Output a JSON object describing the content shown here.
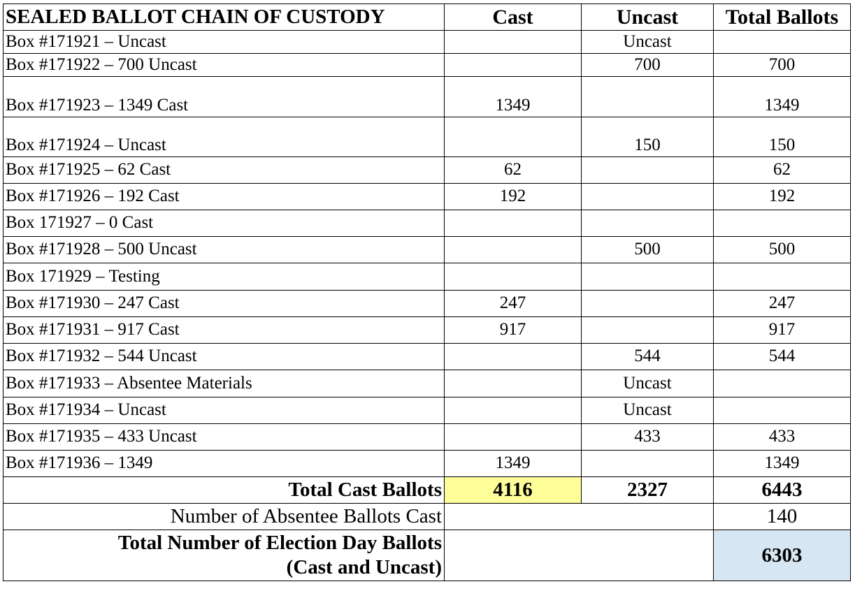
{
  "header": {
    "title": "SEALED BALLOT CHAIN OF CUSTODY",
    "col_cast": "Cast",
    "col_uncast": "Uncast",
    "col_total": "Total Ballots"
  },
  "rows": [
    {
      "label": "Box #171921 – Uncast",
      "cast": "",
      "uncast": "Uncast",
      "total": ""
    },
    {
      "label": "Box #171922 – 700 Uncast",
      "cast": "",
      "uncast": "700",
      "total": "700"
    },
    {
      "label": "Box #171923 – 1349 Cast",
      "cast": "1349",
      "uncast": "",
      "total": "1349"
    },
    {
      "label": "Box #171924 – Uncast",
      "cast": "",
      "uncast": "150",
      "total": "150"
    },
    {
      "label": "Box #171925 – 62 Cast",
      "cast": "62",
      "uncast": "",
      "total": "62"
    },
    {
      "label": "Box #171926 – 192 Cast",
      "cast": "192",
      "uncast": "",
      "total": "192"
    },
    {
      "label": "Box 171927 – 0 Cast",
      "cast": "",
      "uncast": "",
      "total": ""
    },
    {
      "label": "Box #171928 – 500 Uncast",
      "cast": "",
      "uncast": "500",
      "total": "500"
    },
    {
      "label": "Box 171929 – Testing",
      "cast": "",
      "uncast": "",
      "total": ""
    },
    {
      "label": "Box #171930 – 247 Cast",
      "cast": "247",
      "uncast": "",
      "total": "247"
    },
    {
      "label": "Box #171931 – 917 Cast",
      "cast": "917",
      "uncast": "",
      "total": "917"
    },
    {
      "label": "Box #171932 – 544 Uncast",
      "cast": "",
      "uncast": "544",
      "total": "544"
    },
    {
      "label": "Box #171933 – Absentee Materials",
      "cast": "",
      "uncast": "Uncast",
      "total": ""
    },
    {
      "label": "Box #171934 – Uncast",
      "cast": "",
      "uncast": "Uncast",
      "total": ""
    },
    {
      "label": "Box #171935 – 433 Uncast",
      "cast": "",
      "uncast": "433",
      "total": "433"
    },
    {
      "label": "Box #171936 – 1349",
      "cast": "1349",
      "uncast": "",
      "total": "1349"
    }
  ],
  "totals": {
    "label": "Total Cast Ballots",
    "cast": "4116",
    "uncast": "2327",
    "total": "6443"
  },
  "absentee": {
    "label": "Number of Absentee Ballots Cast",
    "value": "140"
  },
  "election_day": {
    "label_line1": "Total Number of Election Day Ballots",
    "label_line2": "(Cast and Uncast)",
    "value": "6303"
  },
  "colors": {
    "highlight_yellow": "#ffff99",
    "highlight_blue": "#d6e6f2"
  }
}
